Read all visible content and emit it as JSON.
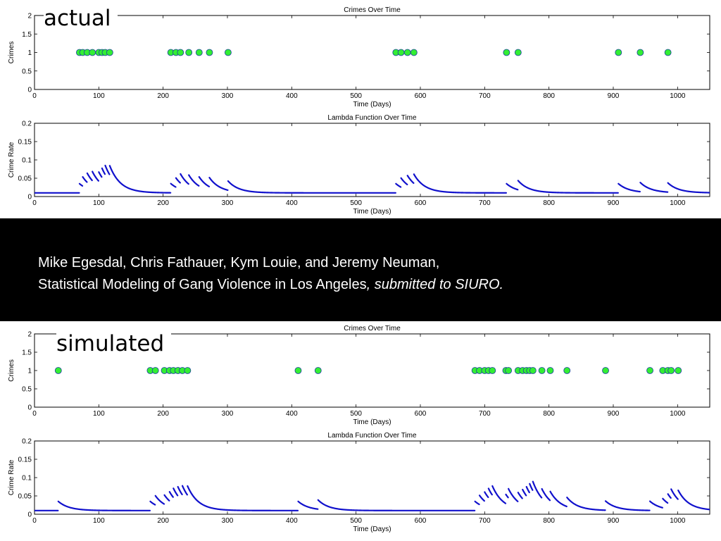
{
  "labels": {
    "actual": "actual",
    "simulated": "simulated"
  },
  "citation": {
    "line1": "Mike Egesdal, Chris Fathauer, Kym Louie, and Jeremy Neuman,",
    "line2_title": "Statistical Modeling of Gang Violence in Los Angeles",
    "line2_sep": ",",
    "line2_note": " submitted to SIURO."
  },
  "colors": {
    "points": "#33ee33",
    "points_edge": "#1a3da0",
    "lambda": "#1010cc",
    "banner": "#000000"
  },
  "chart_data": [
    {
      "type": "scatter",
      "title": "Crimes Over Time",
      "xlabel": "Time (Days)",
      "ylabel": "Crimes",
      "xlim": [
        0,
        1050
      ],
      "ylim": [
        0,
        2
      ],
      "xticks": [
        0,
        100,
        200,
        300,
        400,
        500,
        600,
        700,
        800,
        900,
        1000
      ],
      "yticks": [
        0,
        0.5,
        1,
        1.5,
        2
      ],
      "ytick_labels": [
        "0",
        "0.5",
        "1",
        "1.5",
        "2"
      ],
      "x": [
        70,
        75,
        82,
        90,
        100,
        105,
        110,
        117,
        212,
        220,
        227,
        240,
        256,
        272,
        301,
        562,
        570,
        580,
        590,
        734,
        752,
        908,
        942,
        985
      ],
      "y": [
        1,
        1,
        1,
        1,
        1,
        1,
        1,
        1,
        1,
        1,
        1,
        1,
        1,
        1,
        1,
        1,
        1,
        1,
        1,
        1,
        1,
        1,
        1,
        1
      ]
    },
    {
      "type": "line",
      "title": "Lambda Function Over Time",
      "xlabel": "Time (Days)",
      "ylabel": "Crime Rate",
      "xlim": [
        0,
        1050
      ],
      "ylim": [
        0,
        0.2
      ],
      "xticks": [
        0,
        100,
        200,
        300,
        400,
        500,
        600,
        700,
        800,
        900,
        1000
      ],
      "yticks": [
        0,
        0.05,
        0.1,
        0.15,
        0.2
      ],
      "ytick_labels": [
        "0",
        "0.05",
        "0.1",
        "0.15",
        "0.2"
      ],
      "baseline": 0.01,
      "events": [
        70,
        75,
        82,
        90,
        100,
        105,
        110,
        117,
        212,
        220,
        227,
        240,
        256,
        272,
        301,
        562,
        570,
        580,
        590,
        734,
        752,
        908,
        942,
        985
      ],
      "x_end": 1050
    },
    {
      "type": "scatter",
      "title": "Crimes Over Time",
      "xlabel": "Time (Days)",
      "ylabel": "Crimes",
      "xlim": [
        0,
        1050
      ],
      "ylim": [
        0,
        2
      ],
      "xticks": [
        0,
        100,
        200,
        300,
        400,
        500,
        600,
        700,
        800,
        900,
        1000
      ],
      "yticks": [
        0,
        0.5,
        1,
        1.5,
        2
      ],
      "ytick_labels": [
        "0",
        "0.5",
        "1",
        "1.5",
        "2"
      ],
      "x": [
        37,
        180,
        188,
        202,
        210,
        216,
        223,
        230,
        238,
        410,
        441,
        685,
        692,
        700,
        706,
        712,
        733,
        737,
        752,
        759,
        765,
        770,
        775,
        789,
        802,
        828,
        888,
        957,
        977,
        985,
        990,
        1001
      ],
      "y": [
        1,
        1,
        1,
        1,
        1,
        1,
        1,
        1,
        1,
        1,
        1,
        1,
        1,
        1,
        1,
        1,
        1,
        1,
        1,
        1,
        1,
        1,
        1,
        1,
        1,
        1,
        1,
        1,
        1,
        1,
        1,
        1
      ]
    },
    {
      "type": "line",
      "title": "Lambda Function Over Time",
      "xlabel": "Time (Days)",
      "ylabel": "Crime Rate",
      "xlim": [
        0,
        1050
      ],
      "ylim": [
        0,
        0.2
      ],
      "xticks": [
        0,
        100,
        200,
        300,
        400,
        500,
        600,
        700,
        800,
        900,
        1000
      ],
      "yticks": [
        0,
        0.05,
        0.1,
        0.15,
        0.2
      ],
      "ytick_labels": [
        "0",
        "0.05",
        "0.1",
        "0.15",
        "0.2"
      ],
      "baseline": 0.01,
      "events": [
        37,
        180,
        188,
        202,
        210,
        216,
        223,
        230,
        238,
        410,
        441,
        685,
        692,
        700,
        706,
        712,
        733,
        737,
        752,
        759,
        765,
        770,
        775,
        789,
        802,
        828,
        888,
        957,
        977,
        985,
        990,
        1001
      ],
      "x_end": 1050
    }
  ]
}
